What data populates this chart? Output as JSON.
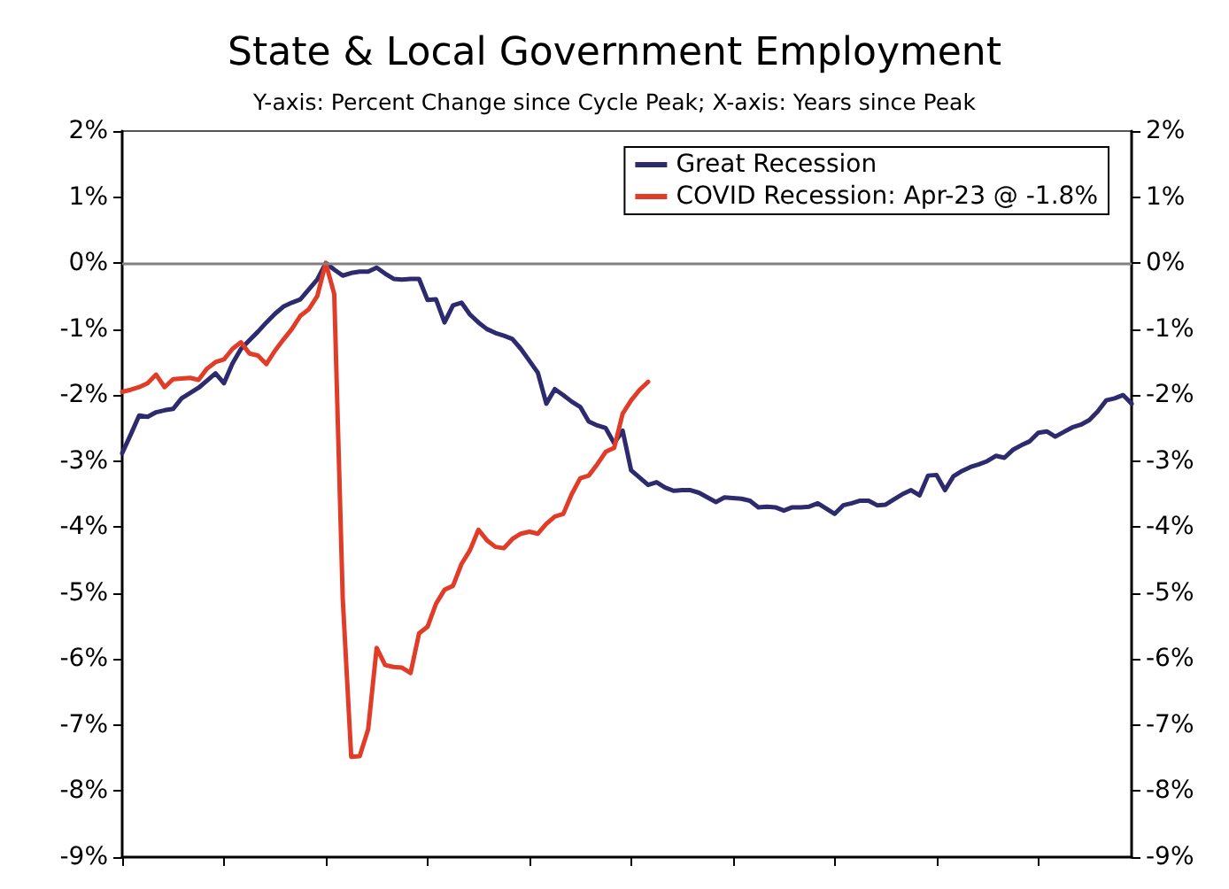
{
  "chart_data": {
    "type": "line",
    "title": "State & Local Government Employment",
    "subtitle": "Y-axis: Percent Change since Cycle Peak; X-axis: Years since Peak",
    "categories": [
      null,
      null,
      null,
      null,
      null,
      null,
      null,
      null,
      null,
      null,
      null,
      null,
      null,
      null,
      null,
      null,
      null,
      null,
      null,
      null,
      null,
      null,
      null,
      null,
      null,
      null,
      null,
      null,
      null,
      null,
      null,
      null,
      null,
      null,
      null,
      null,
      null,
      null,
      null,
      null,
      null,
      null,
      null,
      null,
      null,
      null,
      null,
      null,
      null,
      null,
      null,
      null,
      null,
      null,
      null,
      null,
      null,
      null,
      null,
      null,
      null,
      null,
      null,
      null,
      null,
      null,
      null,
      null,
      null,
      null,
      null,
      null,
      null,
      null,
      null,
      null,
      null,
      null,
      null,
      null,
      null,
      null,
      null,
      null,
      null,
      null,
      null,
      null,
      null,
      null,
      null,
      null,
      null,
      null,
      null,
      null,
      null,
      null,
      null,
      null,
      null,
      null,
      null,
      null,
      null,
      null,
      null,
      null,
      null,
      null,
      null,
      null,
      null,
      null,
      null,
      null,
      null,
      null,
      null,
      null
    ],
    "series": [
      {
        "name": "Great Recession",
        "color": "#2e2a6e",
        "values": [
          -2.88,
          -2.6,
          -2.31,
          -2.33,
          -2.26,
          -2.23,
          -2.21,
          -2.05,
          -1.97,
          -1.89,
          -1.78,
          -1.67,
          -1.82,
          -1.52,
          -1.3,
          -1.17,
          -1.04,
          -0.9,
          -0.77,
          -0.66,
          -0.6,
          -0.55,
          -0.4,
          -0.25,
          0,
          -0.1,
          -0.19,
          -0.15,
          -0.13,
          -0.13,
          -0.07,
          -0.16,
          -0.24,
          -0.25,
          -0.24,
          -0.24,
          -0.56,
          -0.55,
          -0.9,
          -0.64,
          -0.6,
          -0.78,
          -0.9,
          -1.0,
          -1.06,
          -1.1,
          -1.15,
          -1.3,
          -1.48,
          -1.66,
          -2.13,
          -1.91,
          -2.0,
          -2.1,
          -2.18,
          -2.4,
          -2.46,
          -2.5,
          -2.73,
          -2.54,
          -3.14,
          -3.25,
          -3.36,
          -3.32,
          -3.4,
          -3.45,
          -3.44,
          -3.44,
          -3.48,
          -3.55,
          -3.62,
          -3.55,
          -3.56,
          -3.57,
          -3.6,
          -3.7,
          -3.69,
          -3.7,
          -3.75,
          -3.7,
          -3.7,
          -3.69,
          -3.64,
          -3.72,
          -3.8,
          -3.67,
          -3.64,
          -3.6,
          -3.6,
          -3.67,
          -3.66,
          -3.58,
          -3.5,
          -3.44,
          -3.52,
          -3.22,
          -3.21,
          -3.44,
          -3.23,
          -3.15,
          -3.09,
          -3.05,
          -3.0,
          -2.92,
          -2.95,
          -2.83,
          -2.76,
          -2.7,
          -2.57,
          -2.55,
          -2.63,
          -2.56,
          -2.49,
          -2.45,
          -2.38,
          -2.25,
          -2.08,
          -2.05,
          -2.0,
          -2.13
        ]
      },
      {
        "name": "COVID Recession: Apr-23 @ -1.8%",
        "color": "#e03c28",
        "values": [
          -1.95,
          -1.92,
          -1.88,
          -1.82,
          -1.69,
          -1.88,
          -1.76,
          -1.75,
          -1.74,
          -1.77,
          -1.6,
          -1.5,
          -1.46,
          -1.3,
          -1.2,
          -1.37,
          -1.4,
          -1.53,
          -1.33,
          -1.16,
          -1.0,
          -0.8,
          -0.7,
          -0.5,
          0,
          -0.47,
          -5.08,
          -7.48,
          -7.47,
          -7.06,
          -5.83,
          -6.09,
          -6.12,
          -6.13,
          -6.21,
          -5.61,
          -5.51,
          -5.16,
          -4.95,
          -4.89,
          -4.56,
          -4.35,
          -4.04,
          -4.2,
          -4.3,
          -4.32,
          -4.18,
          -4.1,
          -4.07,
          -4.1,
          -3.95,
          -3.84,
          -3.8,
          -3.5,
          -3.26,
          -3.22,
          -3.05,
          -2.86,
          -2.8,
          -2.28,
          -2.08,
          -1.92,
          -1.8,
          null,
          null,
          null,
          null,
          null,
          null,
          null,
          null,
          null,
          null,
          null,
          null,
          null,
          null,
          null,
          null,
          null,
          null,
          null,
          null,
          null,
          null,
          null,
          null,
          null,
          null,
          null,
          null,
          null,
          null,
          null,
          null,
          null,
          null,
          null,
          null,
          null,
          null,
          null,
          null,
          null,
          null,
          null,
          null,
          null,
          null,
          null,
          null,
          null,
          null,
          null,
          null,
          null,
          null,
          null,
          null,
          null
        ]
      }
    ],
    "ylim": [
      -9,
      2
    ],
    "yticks": [
      {
        "value": -9,
        "label": "-9%"
      },
      {
        "value": -8,
        "label": "-8%"
      },
      {
        "value": -7,
        "label": "-7%"
      },
      {
        "value": -6,
        "label": "-6%"
      },
      {
        "value": -5,
        "label": "-5%"
      },
      {
        "value": -4,
        "label": "-4%"
      },
      {
        "value": -3,
        "label": "-3%"
      },
      {
        "value": -2,
        "label": "-2%"
      },
      {
        "value": -1,
        "label": "-1%"
      },
      {
        "value": 0,
        "label": "0%"
      },
      {
        "value": 1,
        "label": "1%"
      },
      {
        "value": 2,
        "label": "2%"
      }
    ],
    "y2lim": [
      -9,
      2
    ],
    "y2ticks": [
      {
        "value": -9,
        "label": "-9%"
      },
      {
        "value": -8,
        "label": "-8%"
      },
      {
        "value": -7,
        "label": "-7%"
      },
      {
        "value": -6,
        "label": "-6%"
      },
      {
        "value": -5,
        "label": "-5%"
      },
      {
        "value": -4,
        "label": "-4%"
      },
      {
        "value": -3,
        "label": "-3%"
      },
      {
        "value": -2,
        "label": "-2%"
      },
      {
        "value": -1,
        "label": "-1%"
      },
      {
        "value": 0,
        "label": "0%"
      },
      {
        "value": 1,
        "label": "1%"
      },
      {
        "value": 2,
        "label": "2%"
      }
    ],
    "ref_lines": [
      {
        "axis": "y",
        "value": 0,
        "color": "#808080"
      }
    ],
    "grid": false,
    "legend": "top right",
    "marker": "none",
    "line_style": "solid"
  }
}
